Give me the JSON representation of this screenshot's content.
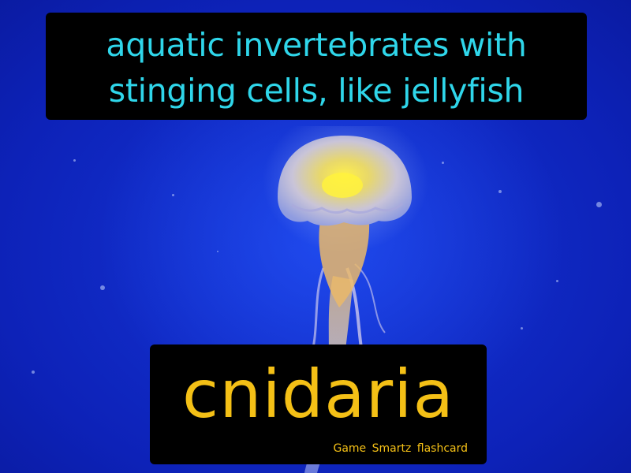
{
  "definition": {
    "line1": "aquatic invertebrates with",
    "line2": "stinging cells, like jellyfish"
  },
  "term": {
    "word": "cnidaria"
  },
  "branding": {
    "label": "Game Smartz flashcard"
  },
  "image": {
    "subject": "jellyfish-icon"
  },
  "colors": {
    "definition_text": "#2fd6ea",
    "term_text": "#f4c016",
    "box_background": "#000000",
    "water": "#1536d8"
  }
}
